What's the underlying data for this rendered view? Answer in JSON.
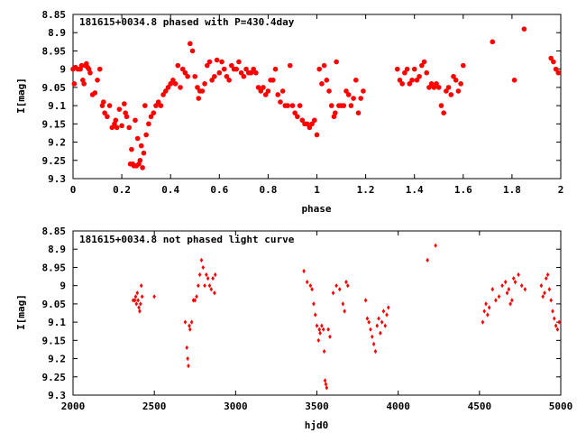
{
  "chart_data": [
    {
      "type": "scatter",
      "title": "181615+0034.8 phased with P=430.4day",
      "xlabel": "phase",
      "ylabel": "I[mag]",
      "xlim": [
        0,
        2
      ],
      "ylim": [
        8.85,
        9.3
      ],
      "y_inverted": true,
      "xticks": [
        0,
        0.2,
        0.4,
        0.6,
        0.8,
        1,
        1.2,
        1.4,
        1.6,
        1.8,
        2
      ],
      "xtick_labels": [
        "0",
        "0.2",
        "0.4",
        "0.6",
        "0.8",
        "1",
        "1.2",
        "1.4",
        "1.6",
        "1.8",
        "2"
      ],
      "yticks": [
        8.85,
        8.9,
        8.95,
        9,
        9.05,
        9.1,
        9.15,
        9.2,
        9.25,
        9.3
      ],
      "ytick_labels": [
        "8.85",
        "8.9",
        "8.95",
        "9",
        "9.05",
        "9.1",
        "9.15",
        "9.2",
        "9.25",
        "9.3"
      ],
      "grid": false,
      "marker_color": "#ff0000",
      "marker": "filled-circle",
      "points": [
        [
          0.0,
          9.0
        ],
        [
          0.005,
          9.04
        ],
        [
          0.01,
          8.995
        ],
        [
          0.02,
          9.0
        ],
        [
          0.03,
          9.0
        ],
        [
          0.035,
          8.99
        ],
        [
          0.04,
          9.03
        ],
        [
          0.045,
          9.04
        ],
        [
          0.05,
          8.99
        ],
        [
          0.055,
          8.985
        ],
        [
          0.06,
          8.995
        ],
        [
          0.065,
          9.0
        ],
        [
          0.07,
          9.01
        ],
        [
          0.08,
          9.07
        ],
        [
          0.09,
          9.065
        ],
        [
          0.1,
          9.03
        ],
        [
          0.11,
          9.0
        ],
        [
          0.12,
          9.1
        ],
        [
          0.125,
          9.09
        ],
        [
          0.13,
          9.12
        ],
        [
          0.14,
          9.13
        ],
        [
          0.15,
          9.1
        ],
        [
          0.16,
          9.16
        ],
        [
          0.17,
          9.15
        ],
        [
          0.175,
          9.14
        ],
        [
          0.18,
          9.16
        ],
        [
          0.19,
          9.11
        ],
        [
          0.2,
          9.155
        ],
        [
          0.21,
          9.095
        ],
        [
          0.215,
          9.12
        ],
        [
          0.22,
          9.13
        ],
        [
          0.23,
          9.16
        ],
        [
          0.235,
          9.26
        ],
        [
          0.24,
          9.22
        ],
        [
          0.245,
          9.26
        ],
        [
          0.25,
          9.265
        ],
        [
          0.255,
          9.14
        ],
        [
          0.26,
          9.265
        ],
        [
          0.265,
          9.19
        ],
        [
          0.27,
          9.26
        ],
        [
          0.275,
          9.25
        ],
        [
          0.28,
          9.21
        ],
        [
          0.285,
          9.27
        ],
        [
          0.29,
          9.23
        ],
        [
          0.295,
          9.1
        ],
        [
          0.3,
          9.18
        ],
        [
          0.31,
          9.15
        ],
        [
          0.32,
          9.13
        ],
        [
          0.33,
          9.12
        ],
        [
          0.34,
          9.1
        ],
        [
          0.35,
          9.09
        ],
        [
          0.36,
          9.1
        ],
        [
          0.37,
          9.07
        ],
        [
          0.38,
          9.06
        ],
        [
          0.39,
          9.05
        ],
        [
          0.4,
          9.04
        ],
        [
          0.41,
          9.03
        ],
        [
          0.42,
          9.04
        ],
        [
          0.43,
          8.99
        ],
        [
          0.44,
          9.05
        ],
        [
          0.45,
          9.0
        ],
        [
          0.46,
          9.01
        ],
        [
          0.47,
          9.02
        ],
        [
          0.48,
          8.93
        ],
        [
          0.49,
          8.95
        ],
        [
          0.5,
          9.02
        ],
        [
          0.51,
          9.05
        ],
        [
          0.515,
          9.08
        ],
        [
          0.52,
          9.06
        ],
        [
          0.53,
          9.06
        ],
        [
          0.54,
          9.04
        ],
        [
          0.55,
          8.99
        ],
        [
          0.56,
          8.98
        ],
        [
          0.57,
          9.03
        ],
        [
          0.58,
          9.02
        ],
        [
          0.59,
          8.975
        ],
        [
          0.6,
          9.01
        ],
        [
          0.61,
          8.98
        ],
        [
          0.62,
          9.0
        ],
        [
          0.63,
          9.02
        ],
        [
          0.64,
          9.03
        ],
        [
          0.65,
          8.99
        ],
        [
          0.66,
          9.0
        ],
        [
          0.67,
          9.0
        ],
        [
          0.68,
          8.98
        ],
        [
          0.69,
          9.01
        ],
        [
          0.7,
          9.02
        ],
        [
          0.71,
          9.0
        ],
        [
          0.72,
          9.01
        ],
        [
          0.73,
          9.01
        ],
        [
          0.74,
          9.0
        ],
        [
          0.75,
          9.01
        ],
        [
          0.76,
          9.05
        ],
        [
          0.77,
          9.06
        ],
        [
          0.78,
          9.05
        ],
        [
          0.79,
          9.07
        ],
        [
          0.8,
          9.06
        ],
        [
          0.81,
          9.03
        ],
        [
          0.82,
          9.03
        ],
        [
          0.83,
          9.0
        ],
        [
          0.84,
          9.07
        ],
        [
          0.85,
          9.09
        ],
        [
          0.86,
          9.06
        ],
        [
          0.87,
          9.1
        ],
        [
          0.88,
          9.1
        ],
        [
          0.89,
          8.99
        ],
        [
          0.9,
          9.1
        ],
        [
          0.91,
          9.12
        ],
        [
          0.92,
          9.13
        ],
        [
          0.93,
          9.1
        ],
        [
          0.94,
          9.14
        ],
        [
          0.95,
          9.15
        ],
        [
          0.96,
          9.15
        ],
        [
          0.97,
          9.16
        ],
        [
          0.98,
          9.15
        ],
        [
          0.99,
          9.14
        ],
        [
          1.0,
          9.18
        ],
        [
          1.01,
          9.0
        ],
        [
          1.02,
          9.04
        ],
        [
          1.03,
          8.99
        ],
        [
          1.04,
          9.03
        ],
        [
          1.05,
          9.06
        ],
        [
          1.06,
          9.1
        ],
        [
          1.07,
          9.13
        ],
        [
          1.075,
          9.12
        ],
        [
          1.08,
          8.98
        ],
        [
          1.09,
          9.1
        ],
        [
          1.1,
          9.1
        ],
        [
          1.11,
          9.1
        ],
        [
          1.12,
          9.06
        ],
        [
          1.13,
          9.07
        ],
        [
          1.14,
          9.1
        ],
        [
          1.15,
          9.08
        ],
        [
          1.16,
          9.03
        ],
        [
          1.17,
          9.12
        ],
        [
          1.18,
          9.08
        ],
        [
          1.19,
          9.06
        ],
        [
          1.33,
          9.0
        ],
        [
          1.34,
          9.03
        ],
        [
          1.35,
          9.04
        ],
        [
          1.36,
          9.01
        ],
        [
          1.37,
          9.0
        ],
        [
          1.38,
          9.04
        ],
        [
          1.39,
          9.03
        ],
        [
          1.4,
          9.0
        ],
        [
          1.41,
          9.03
        ],
        [
          1.42,
          9.02
        ],
        [
          1.43,
          8.99
        ],
        [
          1.44,
          8.98
        ],
        [
          1.45,
          9.01
        ],
        [
          1.46,
          9.05
        ],
        [
          1.47,
          9.04
        ],
        [
          1.48,
          9.05
        ],
        [
          1.49,
          9.04
        ],
        [
          1.5,
          9.05
        ],
        [
          1.51,
          9.1
        ],
        [
          1.52,
          9.12
        ],
        [
          1.53,
          9.06
        ],
        [
          1.54,
          9.05
        ],
        [
          1.55,
          9.07
        ],
        [
          1.56,
          9.02
        ],
        [
          1.57,
          9.03
        ],
        [
          1.58,
          9.06
        ],
        [
          1.59,
          9.04
        ],
        [
          1.6,
          8.99
        ],
        [
          1.72,
          8.925
        ],
        [
          1.81,
          9.03
        ],
        [
          1.85,
          8.89
        ],
        [
          1.96,
          8.97
        ],
        [
          1.97,
          8.98
        ],
        [
          1.98,
          9.0
        ],
        [
          1.99,
          9.01
        ]
      ]
    },
    {
      "type": "scatter",
      "title": "181615+0034.8 not phased light curve",
      "xlabel": "hjd0",
      "ylabel": "I[mag]",
      "xlim": [
        2000,
        5000
      ],
      "ylim": [
        8.85,
        9.3
      ],
      "y_inverted": true,
      "xticks": [
        2000,
        2500,
        3000,
        3500,
        4000,
        4500,
        5000
      ],
      "xtick_labels": [
        "2000",
        "2500",
        "3000",
        "3500",
        "4000",
        "4500",
        "5000"
      ],
      "yticks": [
        8.85,
        8.9,
        8.95,
        9,
        9.05,
        9.1,
        9.15,
        9.2,
        9.25,
        9.3
      ],
      "ytick_labels": [
        "8.85",
        "8.9",
        "8.95",
        "9",
        "9.05",
        "9.1",
        "9.15",
        "9.2",
        "9.25",
        "9.3"
      ],
      "grid": false,
      "marker_color": "#ff0000",
      "marker": "diamond",
      "points": [
        [
          2370,
          9.04
        ],
        [
          2380,
          9.04
        ],
        [
          2385,
          9.03
        ],
        [
          2390,
          9.05
        ],
        [
          2395,
          9.02
        ],
        [
          2400,
          9.04
        ],
        [
          2405,
          9.06
        ],
        [
          2410,
          9.07
        ],
        [
          2415,
          9.05
        ],
        [
          2420,
          9.0
        ],
        [
          2425,
          9.03
        ],
        [
          2500,
          9.03
        ],
        [
          2690,
          9.1
        ],
        [
          2700,
          9.17
        ],
        [
          2705,
          9.2
        ],
        [
          2710,
          9.22
        ],
        [
          2715,
          9.11
        ],
        [
          2720,
          9.12
        ],
        [
          2730,
          9.1
        ],
        [
          2740,
          9.04
        ],
        [
          2750,
          9.04
        ],
        [
          2760,
          9.03
        ],
        [
          2770,
          9.0
        ],
        [
          2780,
          8.97
        ],
        [
          2790,
          8.93
        ],
        [
          2800,
          8.95
        ],
        [
          2810,
          9.0
        ],
        [
          2820,
          8.97
        ],
        [
          2830,
          8.98
        ],
        [
          2840,
          9.0
        ],
        [
          2850,
          9.01
        ],
        [
          2860,
          8.98
        ],
        [
          2870,
          9.02
        ],
        [
          2875,
          8.97
        ],
        [
          3420,
          8.96
        ],
        [
          3440,
          8.99
        ],
        [
          3460,
          9.0
        ],
        [
          3470,
          9.01
        ],
        [
          3480,
          9.05
        ],
        [
          3490,
          9.08
        ],
        [
          3500,
          9.11
        ],
        [
          3510,
          9.15
        ],
        [
          3515,
          9.12
        ],
        [
          3520,
          9.13
        ],
        [
          3530,
          9.11
        ],
        [
          3540,
          9.12
        ],
        [
          3545,
          9.18
        ],
        [
          3550,
          9.26
        ],
        [
          3555,
          9.27
        ],
        [
          3560,
          9.28
        ],
        [
          3570,
          9.12
        ],
        [
          3580,
          9.14
        ],
        [
          3600,
          9.02
        ],
        [
          3620,
          9.0
        ],
        [
          3640,
          9.01
        ],
        [
          3660,
          9.05
        ],
        [
          3670,
          9.07
        ],
        [
          3680,
          8.99
        ],
        [
          3690,
          9.0
        ],
        [
          3800,
          9.04
        ],
        [
          3810,
          9.09
        ],
        [
          3820,
          9.1
        ],
        [
          3830,
          9.12
        ],
        [
          3840,
          9.14
        ],
        [
          3850,
          9.16
        ],
        [
          3860,
          9.18
        ],
        [
          3870,
          9.11
        ],
        [
          3880,
          9.09
        ],
        [
          3890,
          9.13
        ],
        [
          3900,
          9.1
        ],
        [
          3910,
          9.07
        ],
        [
          3920,
          9.11
        ],
        [
          3930,
          9.08
        ],
        [
          3940,
          9.06
        ],
        [
          4180,
          8.93
        ],
        [
          4230,
          8.89
        ],
        [
          4520,
          9.1
        ],
        [
          4530,
          9.07
        ],
        [
          4540,
          9.05
        ],
        [
          4550,
          9.08
        ],
        [
          4560,
          9.06
        ],
        [
          4580,
          9.01
        ],
        [
          4600,
          9.04
        ],
        [
          4620,
          9.03
        ],
        [
          4640,
          9.0
        ],
        [
          4660,
          8.99
        ],
        [
          4670,
          9.02
        ],
        [
          4680,
          9.01
        ],
        [
          4690,
          9.05
        ],
        [
          4700,
          9.04
        ],
        [
          4710,
          8.98
        ],
        [
          4720,
          8.99
        ],
        [
          4740,
          8.97
        ],
        [
          4760,
          9.0
        ],
        [
          4780,
          9.01
        ],
        [
          4880,
          9.0
        ],
        [
          4890,
          9.03
        ],
        [
          4900,
          9.02
        ],
        [
          4910,
          8.98
        ],
        [
          4920,
          8.97
        ],
        [
          4930,
          9.01
        ],
        [
          4940,
          9.04
        ],
        [
          4950,
          9.07
        ],
        [
          4960,
          9.09
        ],
        [
          4970,
          9.11
        ],
        [
          4980,
          9.12
        ],
        [
          4990,
          9.1
        ]
      ]
    }
  ]
}
